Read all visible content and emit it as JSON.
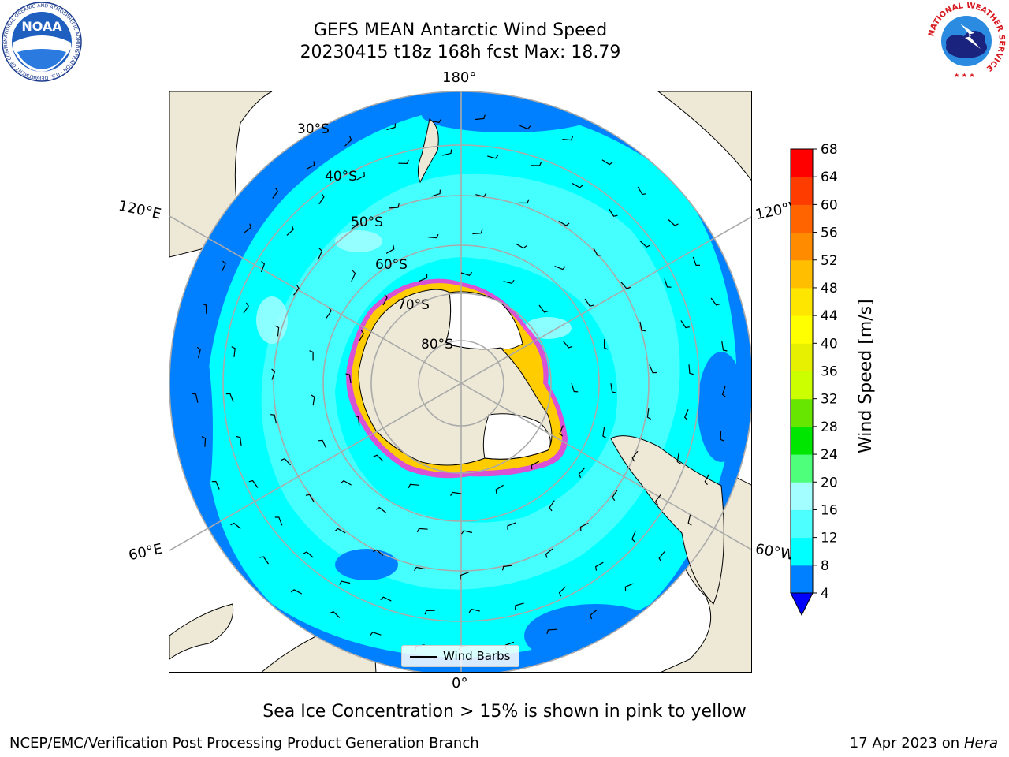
{
  "header": {
    "title_line1": "GEFS MEAN Antarctic Wind Speed",
    "title_line2": "20230415 t18z 168h fcst   Max: 18.79"
  },
  "logos": {
    "noaa_text": "NOAA",
    "noaa_ring_text": "NATIONAL OCEANIC AND ATMOSPHERIC ADMINISTRATION · U.S. DEPARTMENT OF COMMERCE",
    "nws_ring_text": "NATIONAL WEATHER SERVICE"
  },
  "map": {
    "projection": "south-polar-stereographic",
    "longitude_labels": {
      "top": "180°",
      "bottom": "0°",
      "left_upper": "120°E",
      "left_lower": "60°E",
      "right_upper": "120°W",
      "right_lower": "60°W"
    },
    "latitude_labels": [
      "30°S",
      "40°S",
      "50°S",
      "60°S",
      "70°S",
      "80°S"
    ],
    "legend_label": "Wind Barbs",
    "colors": {
      "land": "#ede9d6",
      "ice": "#ffffff",
      "sea_ice_edge": "#ff33cc",
      "sea_ice_edge_inner": "#ffcc00"
    }
  },
  "colorbar": {
    "title": "Wind Speed [m/s]",
    "ticks": [
      "4",
      "8",
      "12",
      "16",
      "20",
      "24",
      "28",
      "32",
      "36",
      "40",
      "44",
      "48",
      "52",
      "56",
      "60",
      "64",
      "68"
    ],
    "bin_colors": [
      "#0080ff",
      "#00ffff",
      "#4dffff",
      "#a3ffff",
      "#4dff7a",
      "#00e600",
      "#66e600",
      "#ccff00",
      "#e6f000",
      "#ffff00",
      "#ffe600",
      "#ffbf00",
      "#ff8c00",
      "#ff6400",
      "#ff3c00",
      "#ff0000"
    ],
    "under_color": "#0000ff"
  },
  "notes": {
    "sea_ice": "Sea Ice Concentration > 15% is shown in pink to yellow"
  },
  "footer": {
    "left": "NCEP/EMC/Verification Post Processing Product Generation Branch",
    "right_prefix": "17 Apr 2023 on ",
    "right_host": "Hera"
  }
}
